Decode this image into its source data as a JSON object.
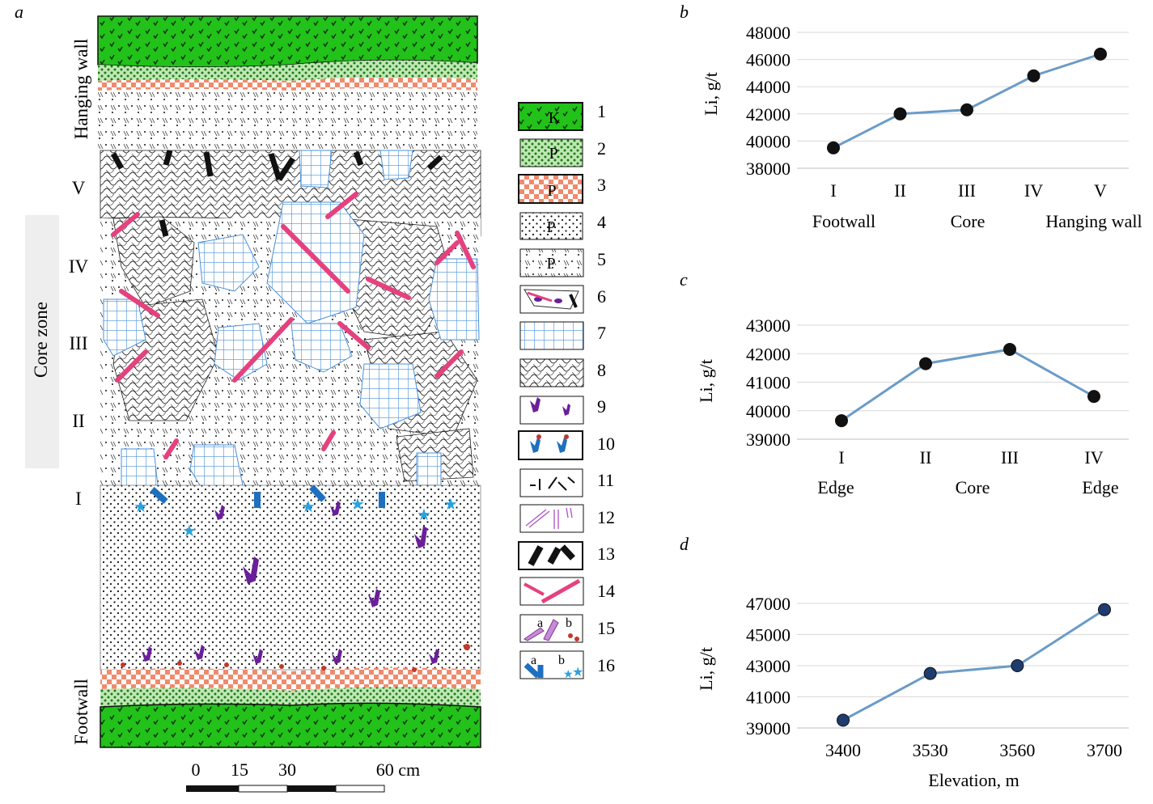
{
  "panel_a": {
    "letter": "a",
    "side_labels": {
      "hanging": "Hanging wall",
      "core": "Core zone",
      "footwall": "Footwall"
    },
    "zones": [
      "V",
      "IV",
      "III",
      "II",
      "I"
    ],
    "scale": {
      "ticks": [
        "0",
        "15",
        "30",
        "60 cm"
      ]
    },
    "legend": [
      {
        "num": "1",
        "letter": "K"
      },
      {
        "num": "2",
        "letter": "P"
      },
      {
        "num": "3",
        "letter": "P"
      },
      {
        "num": "4",
        "letter": "P"
      },
      {
        "num": "5",
        "letter": "P"
      },
      {
        "num": "6"
      },
      {
        "num": "7"
      },
      {
        "num": "8"
      },
      {
        "num": "9"
      },
      {
        "num": "10"
      },
      {
        "num": "11"
      },
      {
        "num": "12"
      },
      {
        "num": "13"
      },
      {
        "num": "14"
      },
      {
        "num": "15",
        "sub": [
          "a",
          "b"
        ]
      },
      {
        "num": "16",
        "sub": [
          "a",
          "b"
        ]
      }
    ],
    "colors": {
      "green": "#22c21a",
      "pink": "#e5417e",
      "blue": "#4a90d9",
      "purple": "#6a1f9a",
      "salmon": "#f08a6c"
    }
  },
  "chart_data": [
    {
      "letter": "b",
      "type": "line",
      "categories": [
        "I",
        "II",
        "III",
        "IV",
        "V"
      ],
      "group_labels": [
        "Footwall",
        "Core",
        "Hanging wall"
      ],
      "values": [
        39500,
        42000,
        42300,
        44800,
        46400
      ],
      "ylabel": "Li, g/t",
      "yticks": [
        "48000",
        "46000",
        "44000",
        "42000",
        "40000",
        "38000"
      ],
      "ylim": [
        38000,
        48000
      ],
      "grid": true,
      "color": "#6b9bc8"
    },
    {
      "letter": "c",
      "type": "line",
      "categories": [
        "I",
        "II",
        "III",
        "IV"
      ],
      "group_labels": [
        "Edge",
        "Core",
        "Edge"
      ],
      "values": [
        39650,
        41650,
        42150,
        40500
      ],
      "ylabel": "Li, g/t",
      "yticks": [
        "43000",
        "42000",
        "41000",
        "40000",
        "39000"
      ],
      "ylim": [
        39000,
        43000
      ],
      "grid": true,
      "color": "#6b9bc8"
    },
    {
      "letter": "d",
      "type": "line",
      "categories": [
        "3400",
        "3530",
        "3560",
        "3700"
      ],
      "values": [
        39500,
        42500,
        43000,
        46600
      ],
      "xlabel": "Elevation, m",
      "ylabel": "Li, g/t",
      "yticks": [
        "47000",
        "45000",
        "43000",
        "41000",
        "39000"
      ],
      "ylim": [
        39000,
        47000
      ],
      "grid": true,
      "color": "#6b9bc8"
    }
  ]
}
